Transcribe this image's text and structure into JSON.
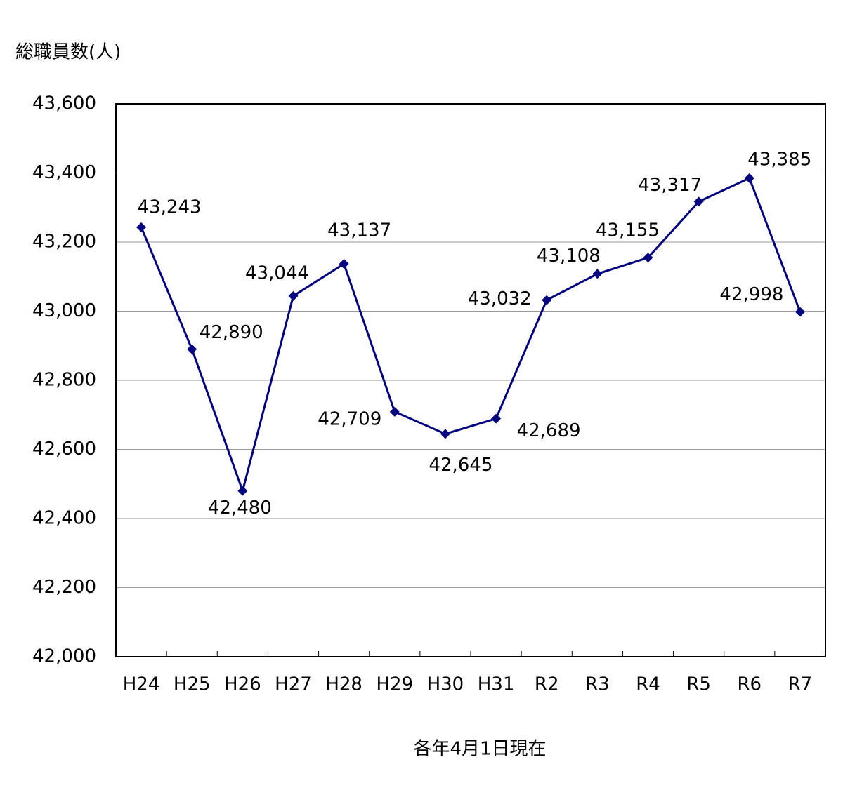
{
  "chart_data": {
    "type": "line",
    "y_axis_label": "総職員数(人)",
    "x_axis_label": "各年4月1日現在",
    "categories": [
      "H24",
      "H25",
      "H26",
      "H27",
      "H28",
      "H29",
      "H30",
      "H31",
      "R2",
      "R3",
      "R4",
      "R5",
      "R6",
      "R7"
    ],
    "series": [
      {
        "color": "#000080",
        "values": [
          43243,
          42890,
          42480,
          43044,
          43137,
          42709,
          42645,
          42689,
          43032,
          43108,
          43155,
          43317,
          43385,
          42998
        ],
        "value_labels": [
          "43,243",
          "42,890",
          "42,480",
          "43,044",
          "43,137",
          "42,709",
          "42,645",
          "42,689",
          "43,032",
          "43,108",
          "43,155",
          "43,317",
          "43,385",
          "42,998"
        ]
      }
    ],
    "ylim": [
      42000,
      43600
    ],
    "yticks": [
      {
        "value": 42000,
        "label": "42,000"
      },
      {
        "value": 42200,
        "label": "42,200"
      },
      {
        "value": 42400,
        "label": "42,400"
      },
      {
        "value": 42600,
        "label": "42,600"
      },
      {
        "value": 42800,
        "label": "42,800"
      },
      {
        "value": 43000,
        "label": "43,000"
      },
      {
        "value": 43200,
        "label": "43,200"
      },
      {
        "value": 43400,
        "label": "43,400"
      },
      {
        "value": 43600,
        "label": "43,600"
      }
    ],
    "grid": true
  }
}
